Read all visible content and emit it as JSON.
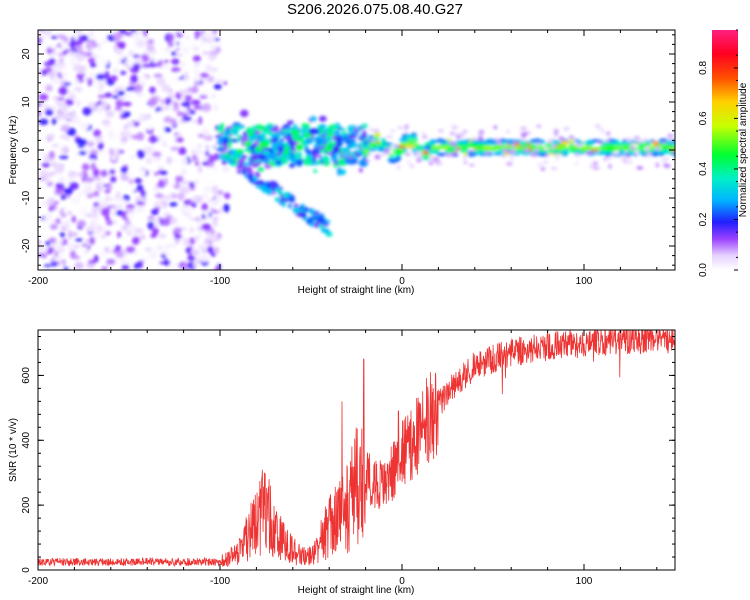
{
  "page_title": "S206.2026.075.08.40.G27",
  "chart_data": [
    {
      "type": "heatmap",
      "title": "S206.2026.075.08.40.G27",
      "xlabel": "Height of straight line (km)",
      "ylabel": "Frequency (Hz)",
      "xlim": [
        -200,
        150
      ],
      "ylim": [
        -25,
        25
      ],
      "x_ticks": [
        -200,
        -100,
        0,
        100
      ],
      "x_tick_labels": [
        "-200",
        "-100",
        "0",
        "100"
      ],
      "y_ticks": [
        -20,
        -10,
        0,
        10,
        20
      ],
      "y_tick_labels": [
        "-20",
        "-10",
        "0",
        "10",
        "20"
      ],
      "colorbar": {
        "label": "Normalized spectral amplitude",
        "range": [
          0,
          0.95
        ],
        "ticks": [
          0.0,
          0.2,
          0.4,
          0.6,
          0.8
        ],
        "tick_labels": [
          "0.0",
          "0.2",
          "0.4",
          "0.6",
          "0.8"
        ]
      },
      "description_regions": [
        {
          "x_range": [
            -200,
            -100
          ],
          "frequency_range": [
            -25,
            25
          ],
          "amplitude_range": [
            0.0,
            0.15
          ]
        },
        {
          "x_range": [
            -100,
            -20
          ],
          "frequency_range": [
            -17,
            5
          ],
          "amplitude_range": [
            0.1,
            0.45
          ]
        },
        {
          "x_range": [
            -20,
            150
          ],
          "frequency_center": 0.5,
          "frequency_halfwidth": 1.5,
          "amplitude_range": [
            0.35,
            0.95
          ]
        }
      ]
    },
    {
      "type": "line",
      "xlabel": "Height of straight line (km)",
      "ylabel": "SNR (10 * v/v)",
      "xlim": [
        -200,
        150
      ],
      "ylim": [
        0,
        740
      ],
      "x_ticks": [
        -200,
        -100,
        0,
        100
      ],
      "x_tick_labels": [
        "-200",
        "-100",
        "0",
        "100"
      ],
      "y_ticks": [
        0,
        200,
        400,
        600
      ],
      "y_tick_labels": [
        "0",
        "200",
        "400",
        "600"
      ],
      "series_color": "#ee3333",
      "envelope": {
        "x": [
          -200,
          -150,
          -100,
          -90,
          -80,
          -75,
          -70,
          -60,
          -50,
          -45,
          -40,
          -35,
          -30,
          -25,
          -20,
          -15,
          -10,
          -5,
          0,
          5,
          10,
          15,
          20,
          30,
          40,
          60,
          80,
          100,
          120,
          150
        ],
        "y": [
          25,
          25,
          25,
          50,
          150,
          200,
          120,
          60,
          40,
          90,
          130,
          160,
          200,
          260,
          300,
          260,
          270,
          300,
          360,
          380,
          430,
          470,
          510,
          580,
          630,
          670,
          690,
          700,
          710,
          710
        ]
      },
      "spikes": [
        {
          "x": -73,
          "y": 280
        },
        {
          "x": -33,
          "y": 520
        },
        {
          "x": -21,
          "y": 650
        },
        {
          "x": -2,
          "y": 490
        }
      ]
    }
  ]
}
